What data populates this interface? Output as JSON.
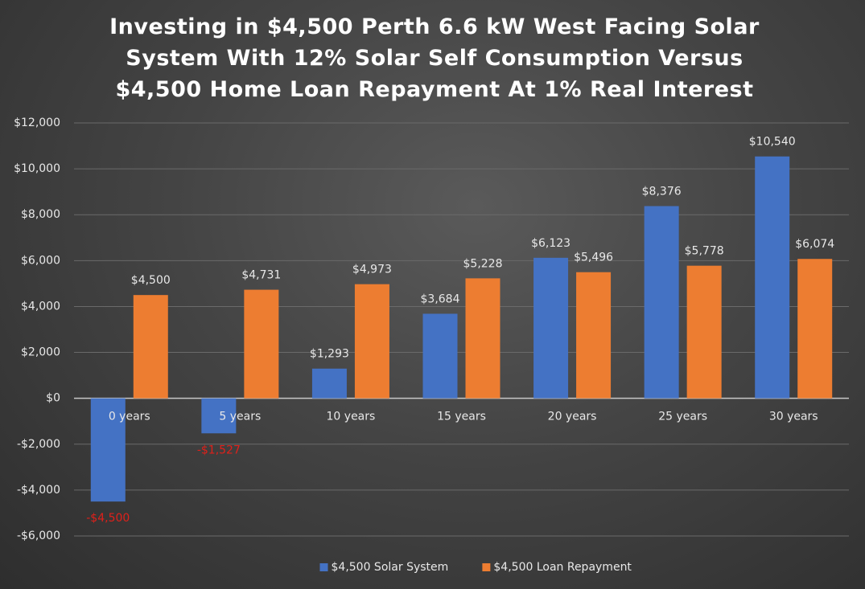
{
  "chart_data": {
    "type": "bar",
    "title": "Investing in $4,500 Perth 6.6 kW West Facing Solar System With 12% Solar Self Consumption Versus $4,500 Home Loan Repayment At 1% Real Interest",
    "categories": [
      "0 years",
      "5 years",
      "10 years",
      "15 years",
      "20 years",
      "25 years",
      "30 years"
    ],
    "series": [
      {
        "name": "$4,500 Solar System",
        "color": "#4472c4",
        "values": [
          -4500,
          -1527,
          1293,
          3684,
          6123,
          8376,
          10540
        ],
        "value_labels": [
          "-$4,500",
          "-$1,527",
          "$1,293",
          "$3,684",
          "$6,123",
          "$8,376",
          "$10,540"
        ]
      },
      {
        "name": "$4,500 Loan Repayment",
        "color": "#ed7d31",
        "values": [
          4500,
          4731,
          4973,
          5228,
          5496,
          5778,
          6074
        ],
        "value_labels": [
          "$4,500",
          "$4,731",
          "$4,973",
          "$5,228",
          "$5,496",
          "$5,778",
          "$6,074"
        ]
      }
    ],
    "ylim": [
      -6000,
      12000
    ],
    "yticks": [
      {
        "value": -6000,
        "label": "-$6,000"
      },
      {
        "value": -4000,
        "label": "-$4,000"
      },
      {
        "value": -2000,
        "label": "-$2,000"
      },
      {
        "value": 0,
        "label": "$0"
      },
      {
        "value": 2000,
        "label": "$2,000"
      },
      {
        "value": 4000,
        "label": "$4,000"
      },
      {
        "value": 6000,
        "label": "$6,000"
      },
      {
        "value": 8000,
        "label": "$8,000"
      },
      {
        "value": 10000,
        "label": "$10,000"
      },
      {
        "value": 12000,
        "label": "$12,000"
      }
    ],
    "grid": true,
    "legend": "bottom"
  }
}
